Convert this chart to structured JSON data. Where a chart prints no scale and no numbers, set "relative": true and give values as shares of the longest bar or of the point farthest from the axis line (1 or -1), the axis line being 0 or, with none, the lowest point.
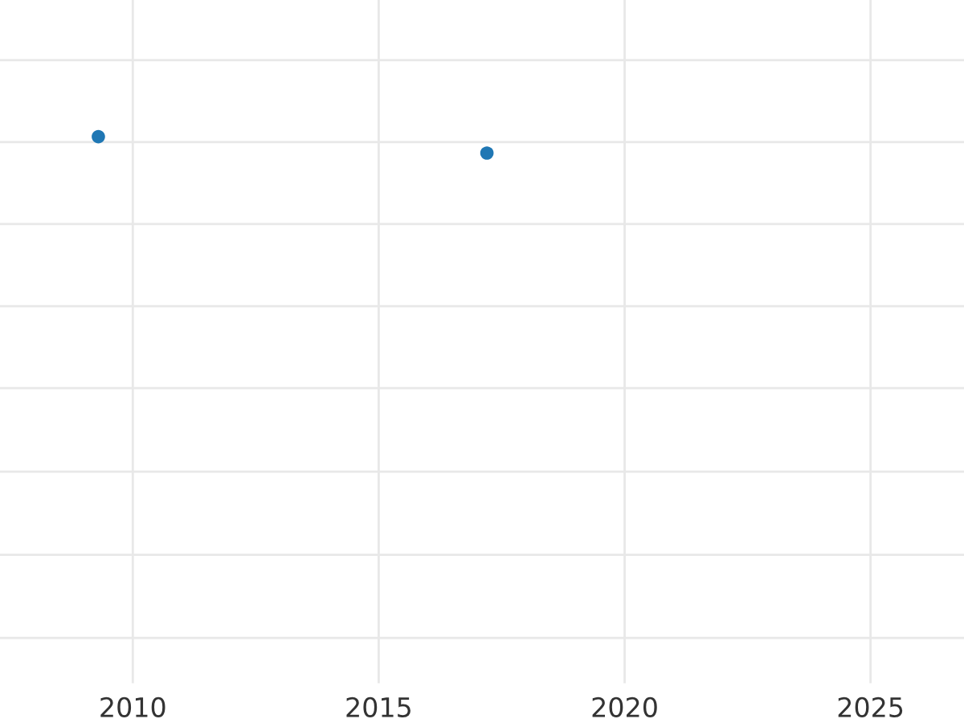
{
  "chart_data": {
    "type": "scatter",
    "relative": true,
    "x": [
      2009.3,
      2017.2
    ],
    "values": [
      1,
      0.97
    ],
    "color": "#1f77b4",
    "xlim": [
      2007.3,
      2026.9
    ],
    "xticks": [
      2010,
      2015,
      2020,
      2025
    ],
    "grid": true,
    "marker": "circle"
  }
}
